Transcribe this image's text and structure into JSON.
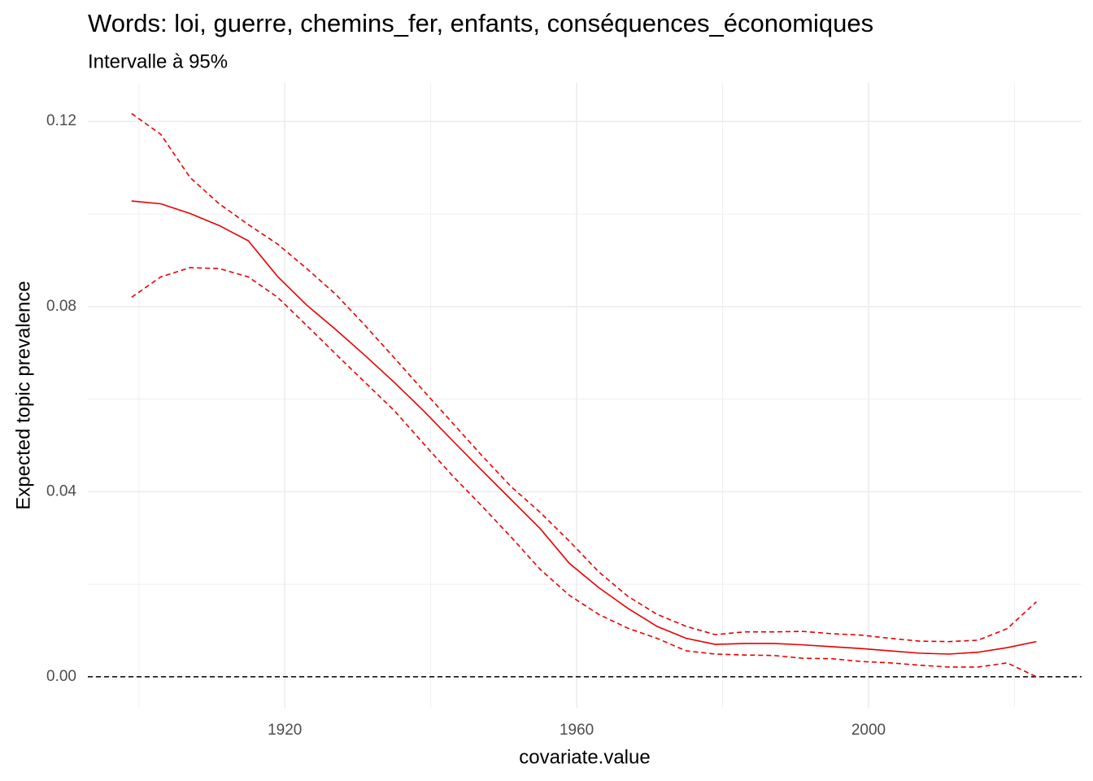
{
  "chart_data": {
    "type": "line",
    "title": "Words: loi, guerre, chemins_fer, enfants, conséquences_économiques",
    "subtitle": "Intervalle à 95%",
    "x_label": "covariate.value",
    "y_label": "Expected topic prevalence",
    "x": [
      1899,
      1903,
      1907,
      1911,
      1915,
      1919,
      1923,
      1927,
      1931,
      1935,
      1939,
      1943,
      1947,
      1951,
      1955,
      1959,
      1963,
      1967,
      1971,
      1975,
      1979,
      1983,
      1987,
      1991,
      1995,
      1999,
      2003,
      2007,
      2011,
      2015,
      2019,
      2023
    ],
    "series": [
      {
        "color": "#e60000",
        "dash": "solid",
        "values": [
          0.1028,
          0.1022,
          0.1001,
          0.0975,
          0.0942,
          0.0865,
          0.0803,
          0.075,
          0.0694,
          0.0636,
          0.0575,
          0.051,
          0.0446,
          0.0383,
          0.032,
          0.0245,
          0.0193,
          0.0148,
          0.0109,
          0.0083,
          0.007,
          0.0072,
          0.0072,
          0.0069,
          0.0065,
          0.0061,
          0.0056,
          0.0051,
          0.0049,
          0.0053,
          0.0063,
          0.0076
        ]
      },
      {
        "color": "#e60000",
        "dash": "dashed",
        "values": [
          0.1217,
          0.1172,
          0.1079,
          0.1022,
          0.0977,
          0.0935,
          0.0882,
          0.0826,
          0.0759,
          0.0689,
          0.0618,
          0.0548,
          0.0478,
          0.0411,
          0.0355,
          0.0293,
          0.0227,
          0.0174,
          0.0135,
          0.0109,
          0.0091,
          0.0097,
          0.0097,
          0.0098,
          0.0093,
          0.009,
          0.0083,
          0.0077,
          0.0076,
          0.0079,
          0.0104,
          0.0162
        ]
      },
      {
        "color": "#e60000",
        "dash": "dashed",
        "values": [
          0.082,
          0.0864,
          0.0884,
          0.0882,
          0.0864,
          0.082,
          0.0759,
          0.0697,
          0.0636,
          0.0575,
          0.0504,
          0.0434,
          0.0369,
          0.0302,
          0.0232,
          0.0176,
          0.0135,
          0.0105,
          0.0083,
          0.0056,
          0.0049,
          0.0047,
          0.0046,
          0.004,
          0.0039,
          0.0033,
          0.003,
          0.0025,
          0.0021,
          0.0021,
          0.003,
          0
        ]
      }
    ],
    "hline": 0,
    "hline_color": "#000000",
    "xlim": [
      1893,
      2029.2
    ],
    "ylim": [
      -0.0067,
      0.1283
    ],
    "xticks": [
      1920,
      1960,
      2000
    ],
    "yticks": [
      {
        "value": 0,
        "label": "0.00"
      },
      0.04,
      0.08,
      0.12
    ],
    "xminorticks": [
      1900,
      1940,
      1980,
      2020
    ],
    "yminorticks": [
      0.02,
      0.06,
      0.1
    ],
    "grid": true
  }
}
